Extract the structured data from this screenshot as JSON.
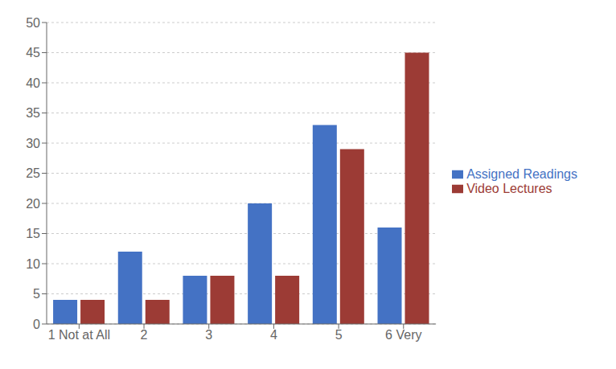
{
  "chart_data": {
    "type": "bar",
    "categories": [
      "1 Not at All",
      "2",
      "3",
      "4",
      "5",
      "6 Very"
    ],
    "series": [
      {
        "name": "Assigned Readings",
        "color": "#4472C4",
        "values": [
          4,
          12,
          8,
          20,
          33,
          16
        ]
      },
      {
        "name": "Video Lectures",
        "color": "#9C3B35",
        "values": [
          4,
          4,
          8,
          8,
          29,
          45
        ]
      }
    ],
    "ylim": [
      0,
      50
    ],
    "yticks": [
      0,
      5,
      10,
      15,
      20,
      25,
      30,
      35,
      40,
      45,
      50
    ],
    "grid": true,
    "legend": "right"
  }
}
